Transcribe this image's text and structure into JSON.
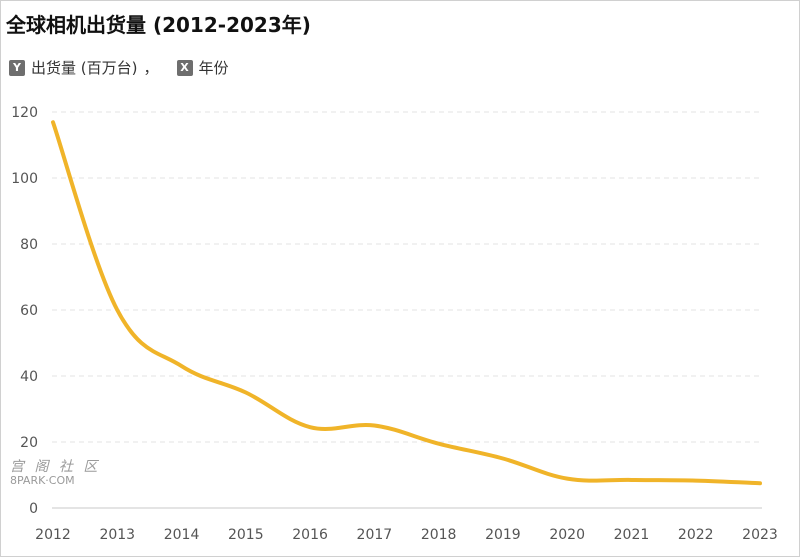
{
  "chart_data": {
    "type": "line",
    "title": "全球相机出货量 (2012-2023年)",
    "legend": {
      "y_badge": "Y",
      "y_label": "出货量 (百万台)",
      "separator": "，",
      "x_badge": "X",
      "x_label": "年份"
    },
    "categories": [
      "2012",
      "2013",
      "2014",
      "2015",
      "2016",
      "2017",
      "2018",
      "2019",
      "2020",
      "2021",
      "2022",
      "2023"
    ],
    "series": [
      {
        "values": [
          116.9,
          60.0,
          43.0,
          35.0,
          24.5,
          25.0,
          19.5,
          15.0,
          8.9,
          8.5,
          8.3,
          7.5
        ]
      }
    ],
    "ylim": [
      0,
      120
    ],
    "yticks": [
      0,
      20,
      40,
      60,
      80,
      100,
      120
    ],
    "grid": true,
    "colors": {
      "line": "#f0b429",
      "grid": "#e3e3e3",
      "axis": "#c8c8c8"
    }
  },
  "watermark": {
    "text_cn": "宫 阁 社 区",
    "text_en": "8PARK·COM"
  }
}
